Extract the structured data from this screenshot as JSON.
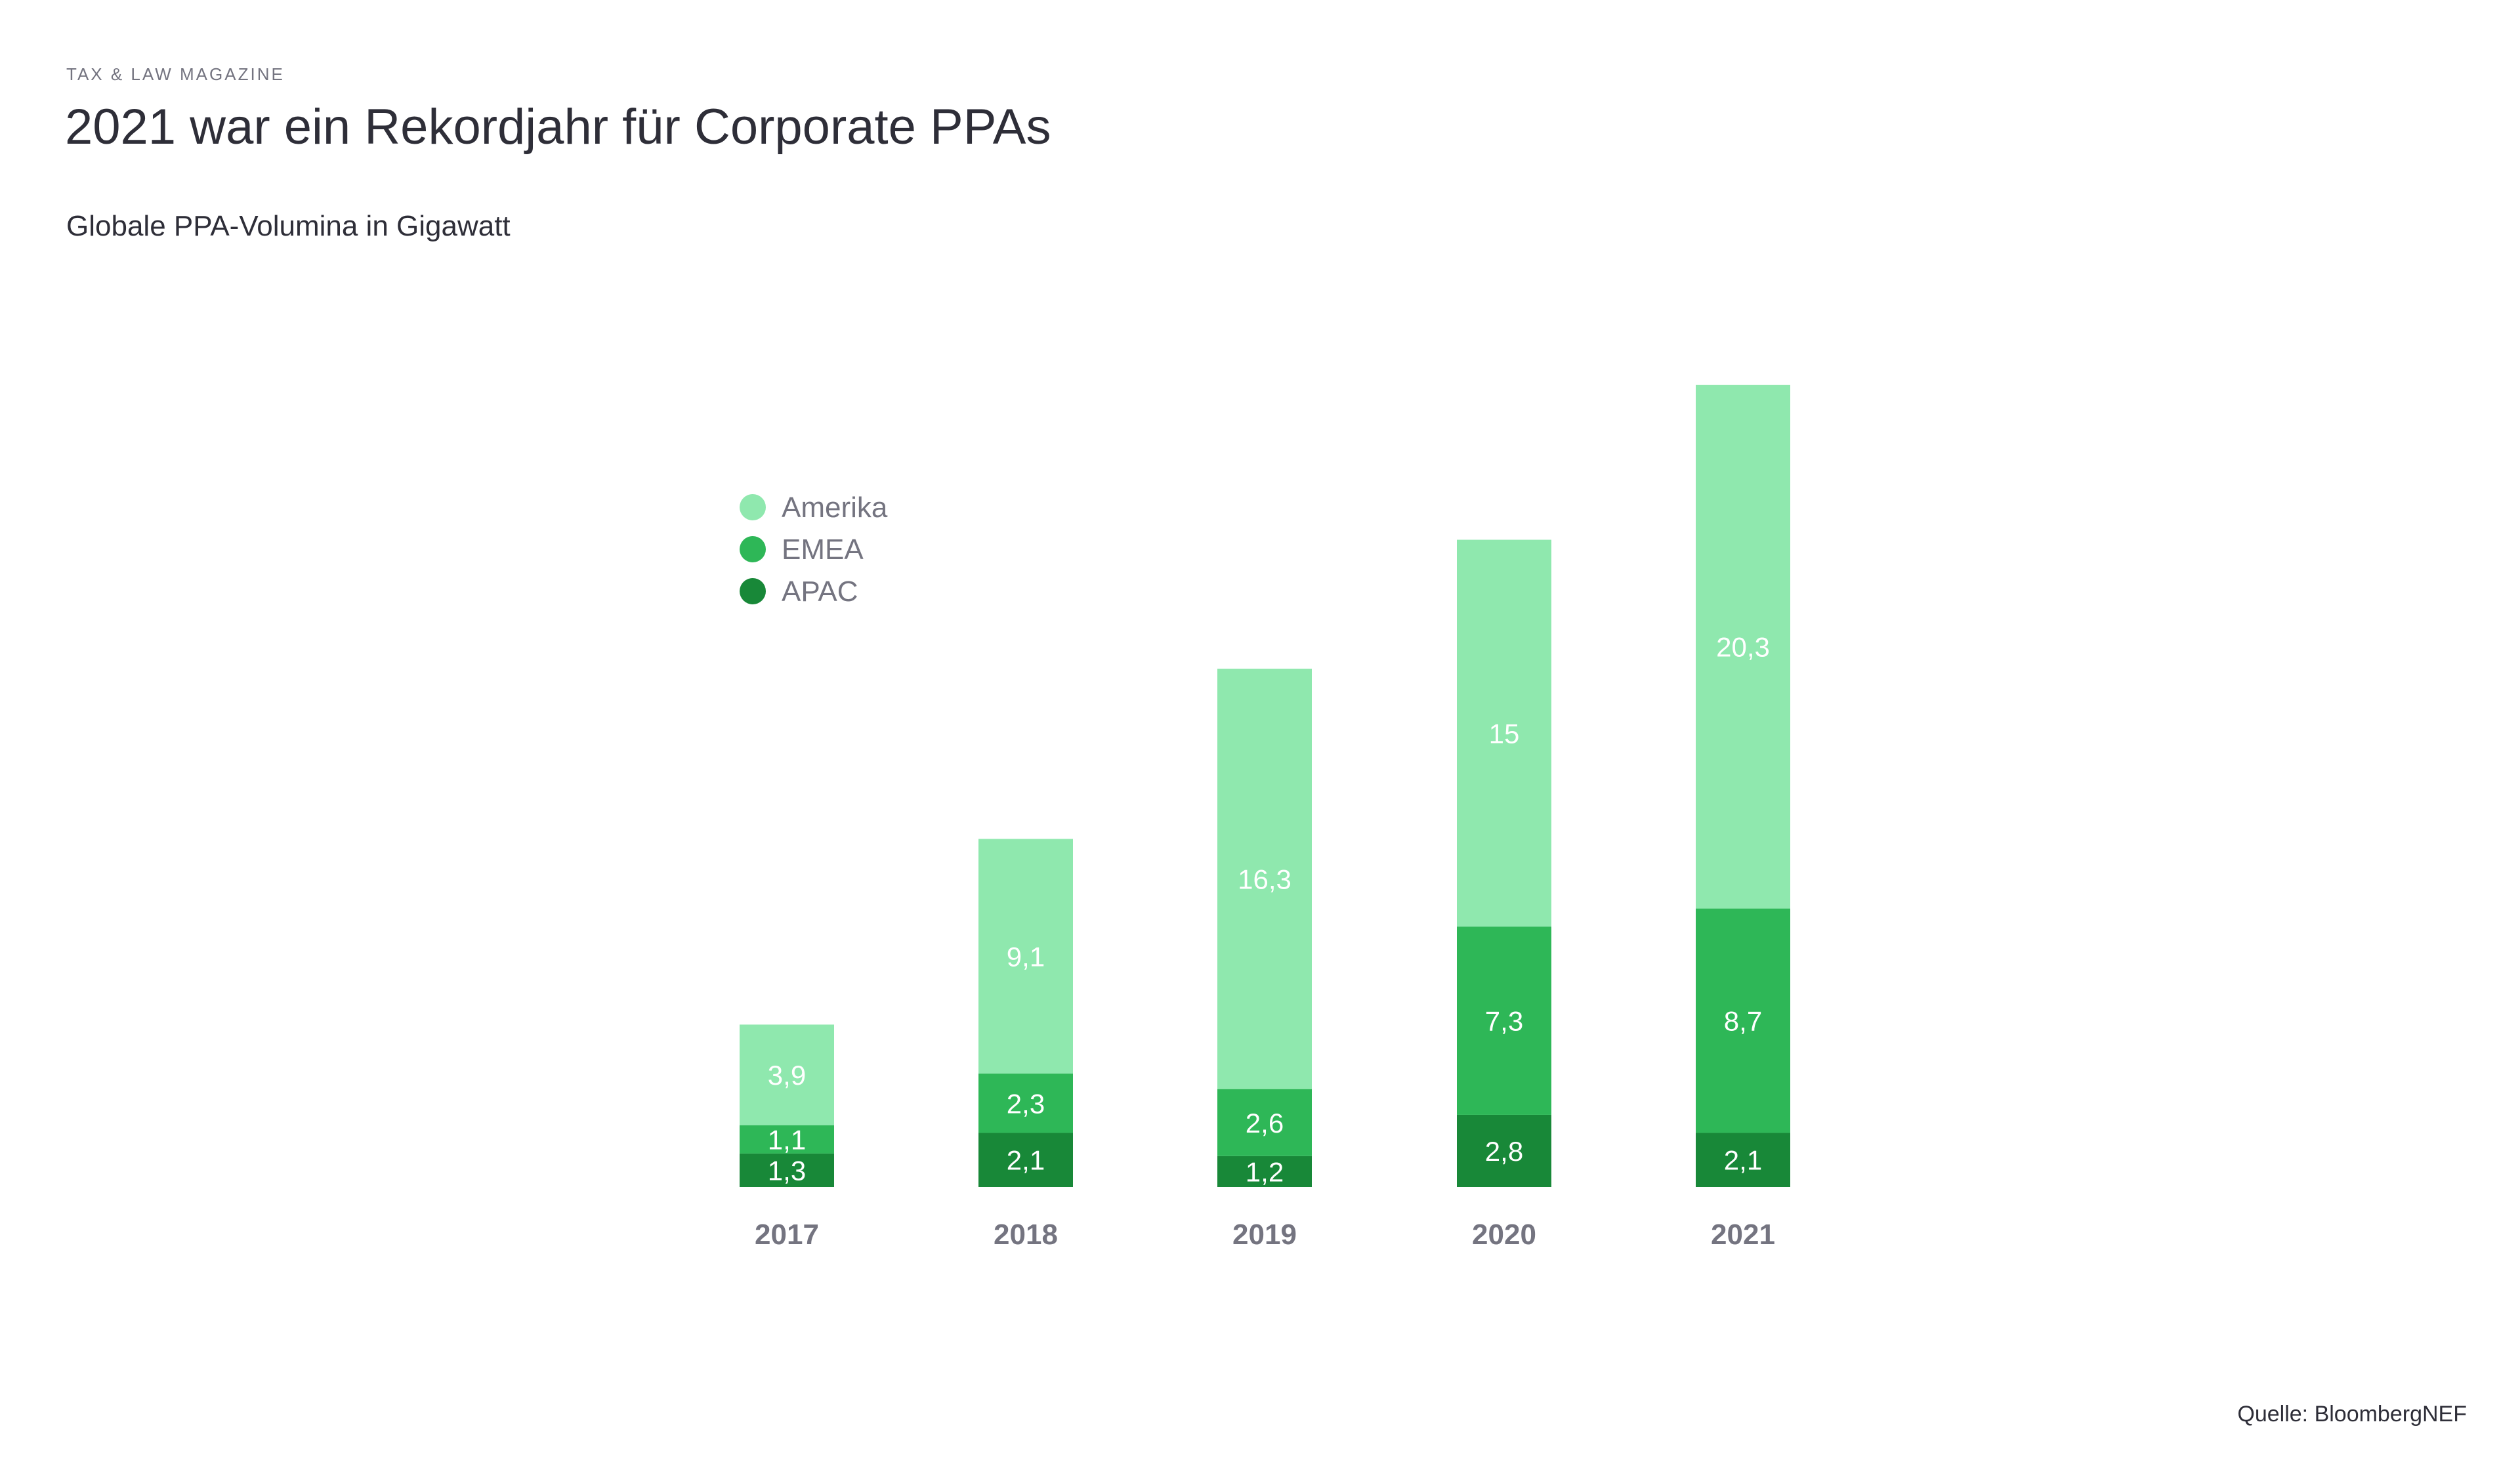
{
  "header": {
    "supertitle": "TAX & LAW MAGAZINE",
    "title": "2021 war ein Rekordjahr für Corporate PPAs",
    "subtitle": "Globale PPA-Volumina in Gigawatt"
  },
  "source": "Quelle: BloombergNEF",
  "chart_data": {
    "type": "bar",
    "stacked": true,
    "title": "Globale PPA-Volumina in Gigawatt",
    "xlabel": "",
    "ylabel": "Gigawatt",
    "categories": [
      "2017",
      "2018",
      "2019",
      "2020",
      "2021"
    ],
    "series": [
      {
        "name": "APAC",
        "color": "#188838",
        "values": [
          1.3,
          2.1,
          1.2,
          2.8,
          2.1
        ],
        "labels": [
          "1,3",
          "2,1",
          "1,2",
          "2,8",
          "2,1"
        ]
      },
      {
        "name": "EMEA",
        "color": "#2eb757",
        "values": [
          1.1,
          2.3,
          2.6,
          7.3,
          8.7
        ],
        "labels": [
          "1,1",
          "2,3",
          "2,6",
          "7,3",
          "8,7"
        ]
      },
      {
        "name": "Amerika",
        "color": "#8fe8ae",
        "values": [
          3.9,
          9.1,
          16.3,
          15,
          20.3
        ],
        "labels": [
          "3,9",
          "9,1",
          "16,3",
          "15",
          "20,3"
        ]
      }
    ],
    "legend": {
      "position": "top-left",
      "order": [
        "Amerika",
        "EMEA",
        "APAC"
      ]
    },
    "grid": false,
    "ylim": [
      0,
      32
    ]
  }
}
